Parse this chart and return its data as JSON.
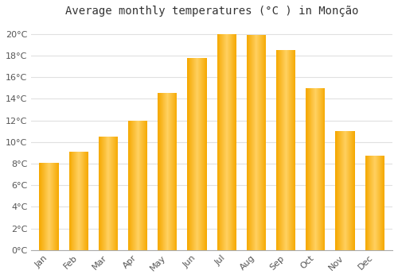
{
  "title": "Average monthly temperatures (°C ) in Monção",
  "months": [
    "Jan",
    "Feb",
    "Mar",
    "Apr",
    "May",
    "Jun",
    "Jul",
    "Aug",
    "Sep",
    "Oct",
    "Nov",
    "Dec"
  ],
  "values": [
    8.1,
    9.1,
    10.5,
    12.0,
    14.5,
    17.8,
    20.0,
    19.9,
    18.5,
    15.0,
    11.0,
    8.7
  ],
  "bar_color_center": "#FFD060",
  "bar_color_edge": "#F5A800",
  "ylim": [
    0,
    21
  ],
  "yticks": [
    0,
    2,
    4,
    6,
    8,
    10,
    12,
    14,
    16,
    18,
    20
  ],
  "ytick_labels": [
    "0°C",
    "2°C",
    "4°C",
    "6°C",
    "8°C",
    "10°C",
    "12°C",
    "14°C",
    "16°C",
    "18°C",
    "20°C"
  ],
  "background_color": "#ffffff",
  "grid_color": "#e0e0e0",
  "title_fontsize": 10,
  "tick_fontsize": 8,
  "tick_color": "#555555",
  "figsize": [
    5.0,
    3.5
  ],
  "dpi": 100
}
